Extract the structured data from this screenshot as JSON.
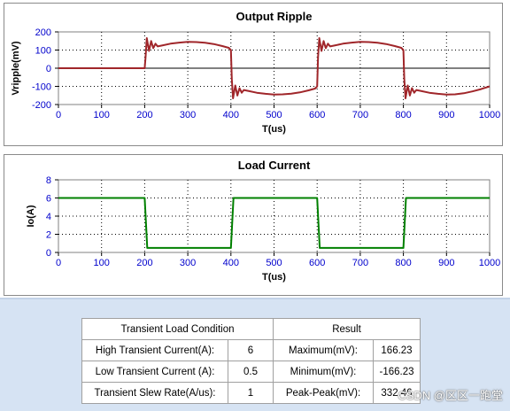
{
  "charts": {
    "ripple": {
      "title": "Output Ripple",
      "xlabel": "T(us)",
      "ylabel": "Vripple(mV)",
      "x_ticks": [
        "0",
        "100",
        "200",
        "300",
        "400",
        "500",
        "600",
        "700",
        "800",
        "900",
        "1000"
      ],
      "y_ticks": [
        "200",
        "100",
        "0",
        "-100",
        "-200"
      ]
    },
    "load": {
      "title": "Load Current",
      "xlabel": "T(us)",
      "ylabel": "Io(A)",
      "x_ticks": [
        "0",
        "100",
        "200",
        "300",
        "400",
        "500",
        "600",
        "700",
        "800",
        "900",
        "1000"
      ],
      "y_ticks": [
        "8",
        "6",
        "4",
        "2",
        "0"
      ]
    }
  },
  "chart_data": [
    {
      "type": "line",
      "title": "Output Ripple",
      "xlabel": "T(us)",
      "ylabel": "Vripple(mV)",
      "xlim": [
        0,
        1000
      ],
      "ylim": [
        -200,
        200
      ],
      "grid": true,
      "color": "#a0262a",
      "series": [
        {
          "x": [
            0,
            200,
            202,
            205,
            210,
            215,
            220,
            225,
            230,
            240,
            260,
            280,
            300,
            320,
            340,
            360,
            380,
            395,
            400,
            402,
            405,
            410,
            415,
            420,
            425,
            430,
            440,
            460,
            480,
            500,
            520,
            540,
            560,
            580,
            595,
            600,
            602,
            605,
            610,
            615,
            620,
            625,
            630,
            640,
            660,
            680,
            700,
            720,
            740,
            760,
            780,
            795,
            800,
            802,
            805,
            810,
            815,
            820,
            825,
            830,
            840,
            860,
            880,
            900,
            920,
            940,
            960,
            980,
            1000
          ],
          "y": [
            0,
            0,
            60,
            166,
            95,
            150,
            110,
            135,
            120,
            125,
            135,
            141,
            145,
            144,
            140,
            133,
            122,
            112,
            100,
            -60,
            -166,
            -95,
            -150,
            -110,
            -135,
            -120,
            -125,
            -135,
            -141,
            -145,
            -144,
            -140,
            -133,
            -122,
            -112,
            -100,
            60,
            166,
            95,
            150,
            110,
            135,
            120,
            125,
            135,
            141,
            145,
            144,
            140,
            133,
            122,
            112,
            100,
            -60,
            -166,
            -95,
            -150,
            -110,
            -135,
            -120,
            -125,
            -135,
            -141,
            -145,
            -144,
            -138,
            -128,
            -115,
            -100
          ]
        }
      ]
    },
    {
      "type": "line",
      "title": "Load Current",
      "xlabel": "T(us)",
      "ylabel": "Io(A)",
      "xlim": [
        0,
        1000
      ],
      "ylim": [
        0,
        8
      ],
      "grid": true,
      "color": "#008000",
      "series": [
        {
          "x": [
            0,
            200,
            206,
            400,
            406,
            600,
            606,
            800,
            806,
            1000
          ],
          "y": [
            6,
            6,
            0.5,
            0.5,
            6,
            6,
            0.5,
            0.5,
            6,
            6
          ]
        }
      ]
    }
  ],
  "table": {
    "headers": [
      "Transient Load Condition",
      "Result"
    ],
    "rows": [
      {
        "label": "High Transient Current(A):",
        "value": "6",
        "rlabel": "Maximum(mV):",
        "rvalue": "166.23"
      },
      {
        "label": "Low Transient Current (A):",
        "value": "0.5",
        "rlabel": "Minimum(mV):",
        "rvalue": "-166.23"
      },
      {
        "label": "Transient Slew Rate(A/us):",
        "value": "1",
        "rlabel": "Peak-Peak(mV):",
        "rvalue": "332.46"
      }
    ]
  },
  "watermark": "CSDN @区区一跑堂"
}
